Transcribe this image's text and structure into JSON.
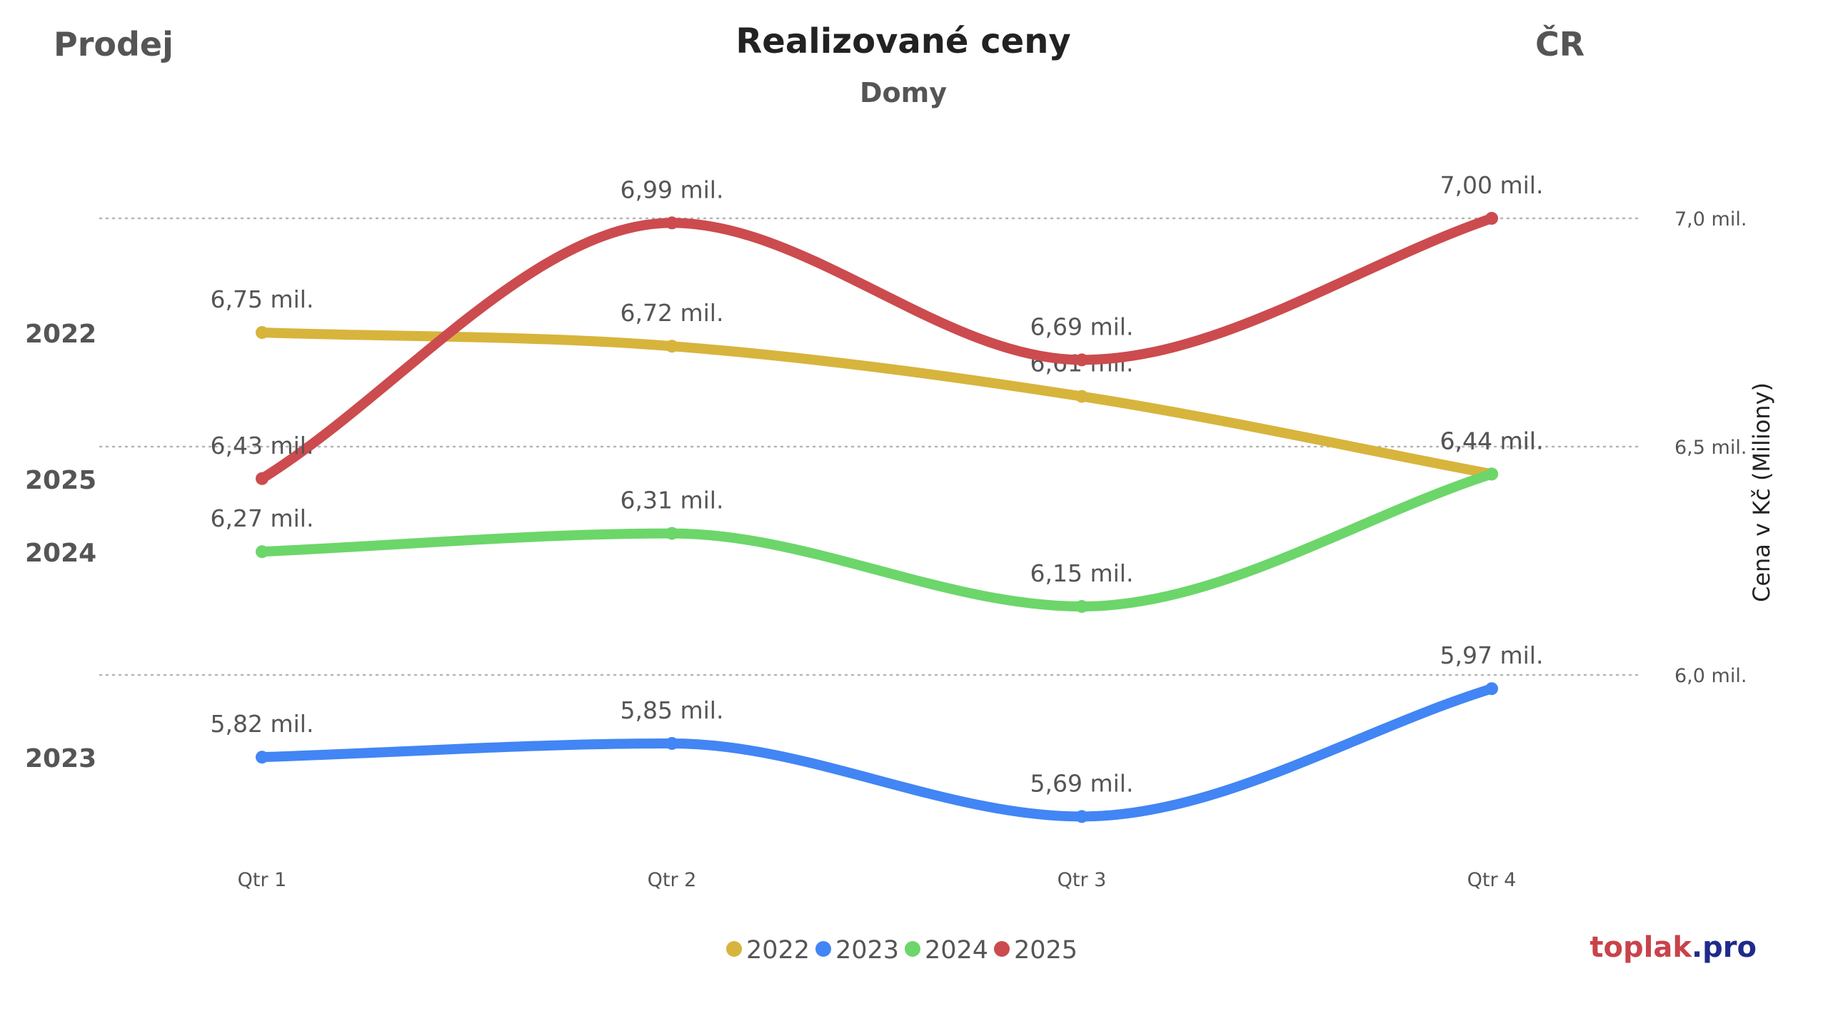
{
  "header": {
    "left_label": "Prodej",
    "title": "Realizované ceny",
    "subtitle": "Domy",
    "right_label": "ČR"
  },
  "brand": {
    "part1": "toplak",
    "part2": ".pro",
    "color1": "#c8434a",
    "color2": "#1f2a8a"
  },
  "chart_data": {
    "type": "line",
    "title": "Realizované ceny",
    "subtitle": "Domy",
    "categories": [
      "Qtr 1",
      "Qtr 2",
      "Qtr 3",
      "Qtr 4"
    ],
    "ylabel": "Cena v Kč (Miliony)",
    "ylim": [
      5.55,
      7.0
    ],
    "yticks": [
      6.0,
      6.5,
      7.0
    ],
    "ytick_labels": [
      "6,0 mil.",
      "6,5 mil.",
      "7,0 mil."
    ],
    "grid": true,
    "legend_position": "bottom-center",
    "series": [
      {
        "name": "2022",
        "color": "#d7b43c",
        "values": [
          6.75,
          6.72,
          6.61,
          6.44
        ],
        "labels": [
          "6,75 mil.",
          "6,72 mil.",
          "6,61 mil.",
          "6,44 mil."
        ]
      },
      {
        "name": "2023",
        "color": "#4285f4",
        "values": [
          5.82,
          5.85,
          5.69,
          5.97
        ],
        "labels": [
          "5,82 mil.",
          "5,85 mil.",
          "5,69 mil.",
          "5,97 mil."
        ]
      },
      {
        "name": "2024",
        "color": "#6cd66a",
        "values": [
          6.27,
          6.31,
          6.15,
          6.44
        ],
        "labels": [
          "6,27 mil.",
          "6,31 mil.",
          "6,15 mil.",
          "6,44 mil."
        ]
      },
      {
        "name": "2025",
        "color": "#cc4b4e",
        "values": [
          6.43,
          6.99,
          6.69,
          7.0
        ],
        "labels": [
          "6,43 mil.",
          "6,99 mil.",
          "6,69 mil.",
          "7,00 mil."
        ]
      }
    ],
    "end_labels": [
      "2022",
      "2025",
      "2024",
      "2023"
    ]
  }
}
